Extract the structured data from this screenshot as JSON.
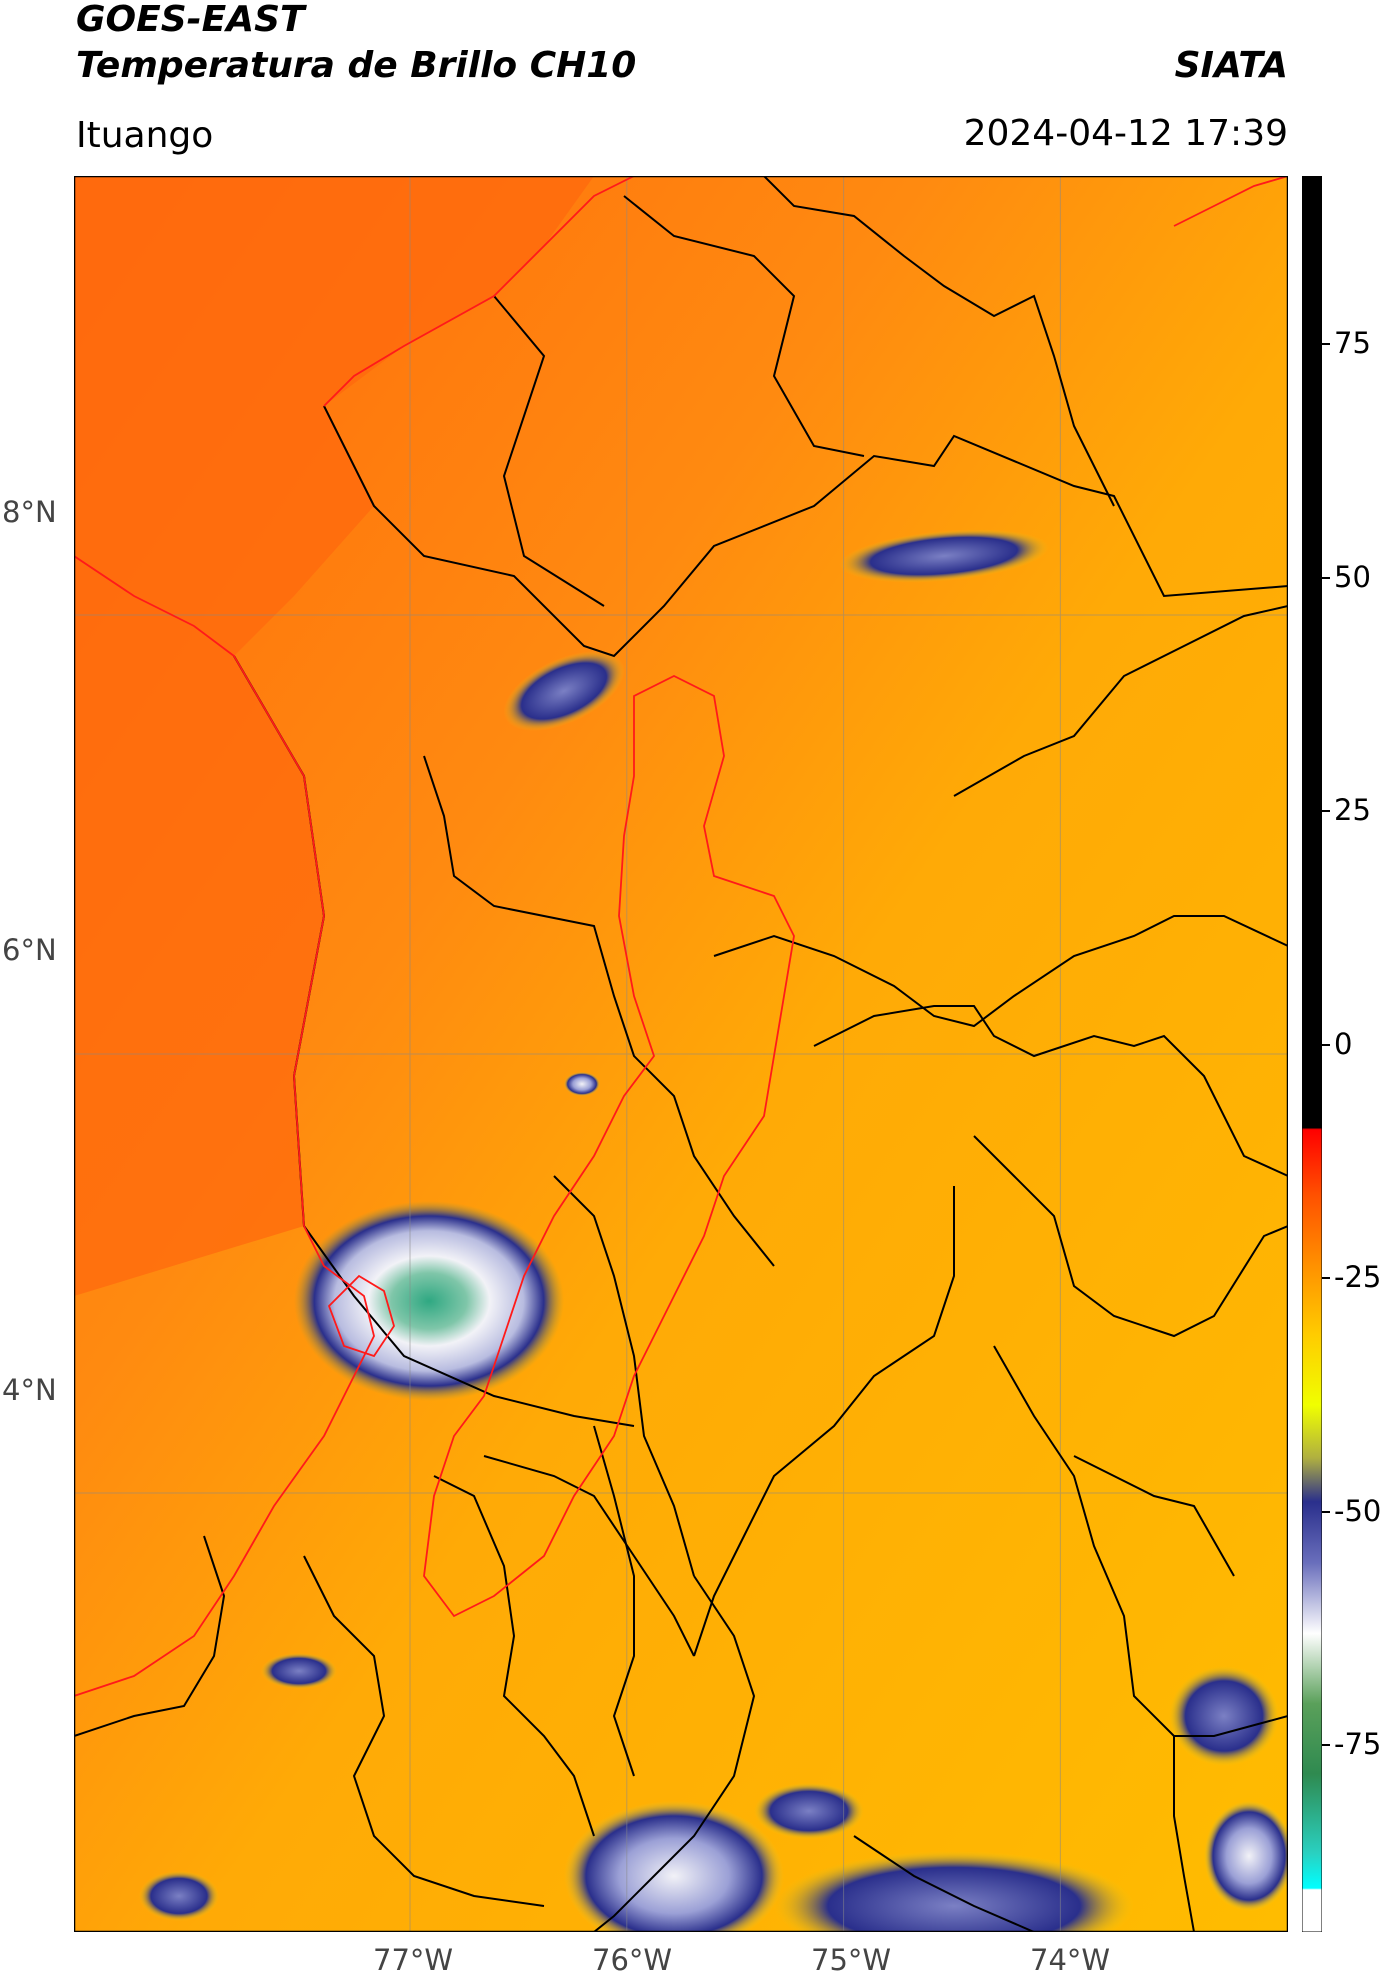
{
  "header": {
    "title_line1": "GOES-EAST",
    "title_line2": "Temperatura de Brillo CH10",
    "brand": "SIATA",
    "location": "Ituango",
    "datetime": "2024-04-12 17:39"
  },
  "map": {
    "longitude_labels": [
      "77°W",
      "76°W",
      "75°W",
      "74°W"
    ],
    "latitude_labels": [
      "8°N",
      "6°N",
      "4°N"
    ],
    "lon_range": [
      -78.55,
      -72.95
    ],
    "lat_range": [
      2.0,
      10.0
    ],
    "colors": {
      "background_warm": "#ff7a10",
      "background_mid": "#ffb000",
      "cloud_cold": "#2a2f8c",
      "cloud_very_cold": "#f2f2f7",
      "cloud_coldest": "#2fa882",
      "border_country": "#000000",
      "border_highlight": "#ff1a1a",
      "gridline": "#888888"
    }
  },
  "colorbar": {
    "ticks": [
      "75",
      "50",
      "25",
      "0",
      "-25",
      "-50",
      "-75"
    ],
    "tick_values": [
      75,
      50,
      25,
      0,
      -25,
      -50,
      -75
    ],
    "range": [
      -95,
      93
    ]
  }
}
